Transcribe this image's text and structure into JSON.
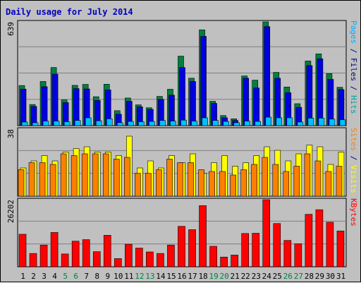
{
  "chart_data": {
    "type": "bar",
    "title": "Daily usage for July 2014",
    "colors": {
      "background": "#c0c0c0",
      "plot": "#c0c0c0",
      "grid": "#808080",
      "title": "#0000c0",
      "day_weekday": "#000000",
      "day_weekend": "#008040",
      "label_hits": "#00a0a0",
      "label_files": "#000080",
      "label_pages": "#00b0ff",
      "label_visits": "#ffff00",
      "label_sites": "#ff8000",
      "label_kbytes": "#ff0000"
    },
    "categories": [
      "1",
      "2",
      "3",
      "4",
      "5",
      "6",
      "7",
      "8",
      "9",
      "10",
      "11",
      "12",
      "13",
      "14",
      "15",
      "16",
      "17",
      "18",
      "19",
      "20",
      "21",
      "22",
      "23",
      "24",
      "25",
      "26",
      "27",
      "28",
      "29",
      "30",
      "31"
    ],
    "weekend_days": [
      "5",
      "6",
      "12",
      "13",
      "19",
      "20",
      "26",
      "27"
    ],
    "panels": [
      {
        "name": "hits",
        "ymax": 639,
        "tick_label": "639",
        "label_parts": [
          {
            "text": "Pages",
            "color_key": "label_pages"
          },
          {
            "text": " / ",
            "color_key": "label_files"
          },
          {
            "text": "Files",
            "color_key": "label_files"
          },
          {
            "text": " / ",
            "color_key": "label_files"
          },
          {
            "text": "Hits",
            "color_key": "label_hits"
          }
        ],
        "series": [
          {
            "name": "Hits",
            "color": "#008040",
            "values": [
              247,
              130,
              272,
              358,
              158,
              248,
              254,
              178,
              255,
              92,
              170,
              128,
              110,
              180,
              224,
              428,
              292,
              590,
              150,
              62,
              42,
              306,
              280,
              639,
              328,
              238,
              135,
              398,
              442,
              320,
              236
            ]
          },
          {
            "name": "Files",
            "color": "#0000e0",
            "values": [
              225,
              118,
              240,
              317,
              142,
              228,
              226,
              155,
              220,
              70,
              150,
              116,
              100,
              161,
              188,
              358,
              272,
              550,
              137,
              48,
              32,
              292,
              232,
              610,
              292,
              203,
              113,
              370,
              412,
              285,
              222
            ]
          },
          {
            "name": "Pages",
            "color": "#00c0ff",
            "values": [
              22,
              18,
              28,
              28,
              24,
              32,
              48,
              30,
              42,
              18,
              26,
              24,
              26,
              32,
              28,
              34,
              28,
              48,
              32,
              26,
              18,
              28,
              26,
              52,
              48,
              48,
              22,
              46,
              46,
              40,
              36
            ]
          }
        ]
      },
      {
        "name": "visits",
        "ymax": 38,
        "tick_label": "38",
        "label_parts": [
          {
            "text": "Sites",
            "color_key": "label_sites"
          },
          {
            "text": " / ",
            "color_key": "label_files"
          },
          {
            "text": "Visits",
            "color_key": "label_visits"
          }
        ],
        "series": [
          {
            "name": "Visits",
            "color": "#ffff00",
            "values": [
              16,
              20,
              23,
              20,
              25,
              27,
              28,
              25,
              25,
              23,
              34,
              16,
              20,
              16,
              23,
              19,
              24,
              13,
              19,
              23,
              17,
              19,
              23,
              28,
              26,
              20,
              24,
              29,
              28,
              18,
              25
            ]
          },
          {
            "name": "Sites",
            "color": "#ff8000",
            "values": [
              15,
              19,
              19,
              18,
              24,
              23,
              24,
              24,
              24,
              21,
              22,
              13,
              13,
              15,
              21,
              19,
              19,
              15,
              14,
              14,
              12,
              15,
              18,
              22,
              18,
              14,
              17,
              24,
              20,
              14,
              17
            ]
          }
        ]
      },
      {
        "name": "kbytes",
        "ymax": 26202,
        "tick_label": "26202",
        "label_parts": [
          {
            "text": "KBytes",
            "color_key": "label_kbytes"
          }
        ],
        "series": [
          {
            "name": "KBytes",
            "color": "#ff0000",
            "values": [
              12700,
              5200,
              8500,
              13400,
              5000,
              10000,
              10600,
              5900,
              12300,
              3200,
              8800,
              7300,
              5800,
              5200,
              8500,
              15800,
              14500,
              23900,
              8000,
              3800,
              4600,
              13000,
              13100,
              26202,
              16900,
              10300,
              9000,
              20500,
              22300,
              17400,
              14000
            ]
          }
        ]
      }
    ]
  }
}
